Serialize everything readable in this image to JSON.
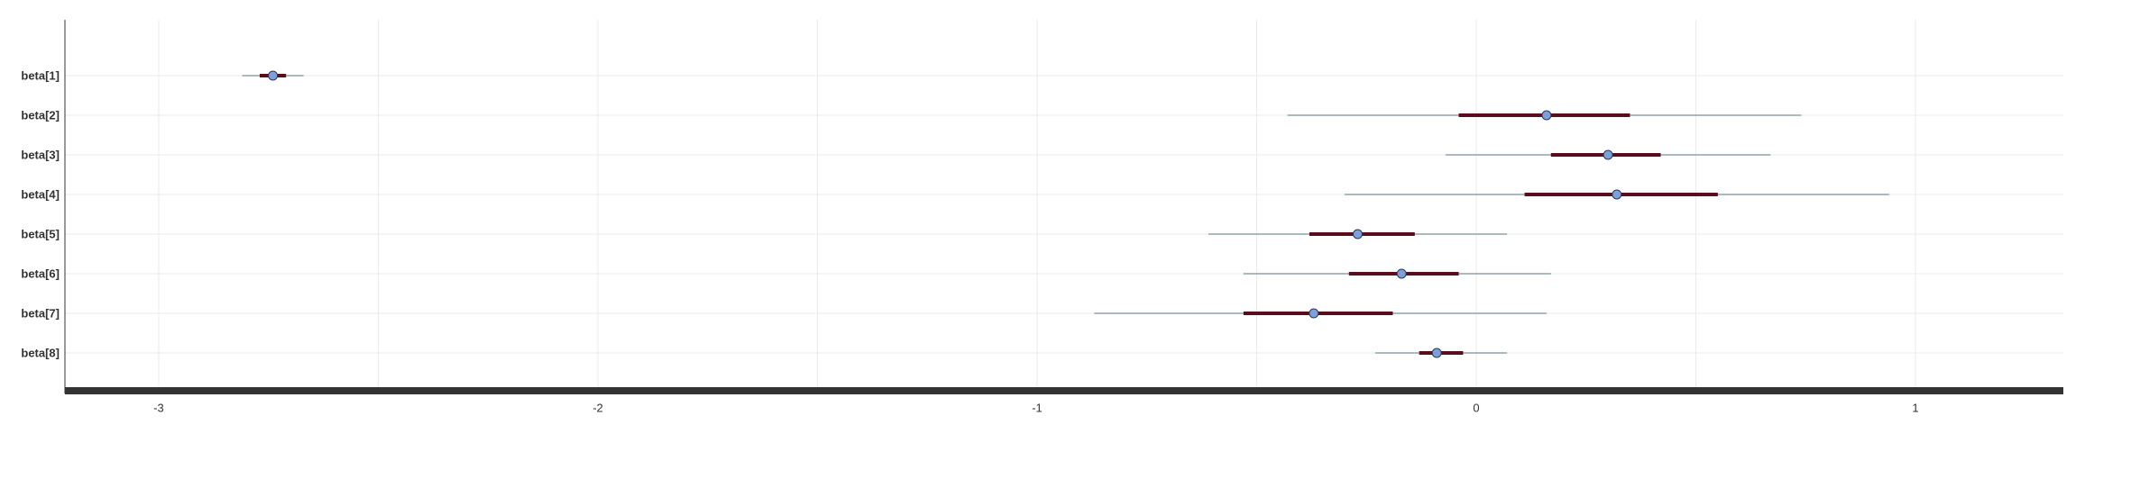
{
  "chart_data": {
    "type": "interval",
    "x_ticks": [
      -3,
      -2,
      -1,
      0,
      1
    ],
    "x_tick_labels": [
      "-3",
      "-2",
      "-1",
      "0",
      "1"
    ],
    "xlim": [
      -3.22,
      1.33
    ],
    "grid": true,
    "series": [
      {
        "label": "beta[1]",
        "outer": [
          -2.81,
          -2.67
        ],
        "inner": [
          -2.77,
          -2.71
        ],
        "point": -2.74
      },
      {
        "label": "beta[2]",
        "outer": [
          -0.43,
          0.74
        ],
        "inner": [
          -0.04,
          0.35
        ],
        "point": 0.16
      },
      {
        "label": "beta[3]",
        "outer": [
          -0.07,
          0.67
        ],
        "inner": [
          0.17,
          0.42
        ],
        "point": 0.3
      },
      {
        "label": "beta[4]",
        "outer": [
          -0.3,
          0.94
        ],
        "inner": [
          0.11,
          0.55
        ],
        "point": 0.32
      },
      {
        "label": "beta[5]",
        "outer": [
          -0.61,
          0.07
        ],
        "inner": [
          -0.38,
          -0.14
        ],
        "point": -0.27
      },
      {
        "label": "beta[6]",
        "outer": [
          -0.53,
          0.17
        ],
        "inner": [
          -0.29,
          -0.04
        ],
        "point": -0.17
      },
      {
        "label": "beta[7]",
        "outer": [
          -0.87,
          0.16
        ],
        "inner": [
          -0.53,
          -0.19
        ],
        "point": -0.37
      },
      {
        "label": "beta[8]",
        "outer": [
          -0.23,
          0.07
        ],
        "inner": [
          -0.13,
          -0.03
        ],
        "point": -0.09
      }
    ],
    "colors": {
      "outer_line": "#8fa3a8",
      "inner_line": "#5a0d1a",
      "point_fill": "#7f9fd9",
      "point_stroke": "#2a3a5a",
      "grid": "#ebebeb",
      "axis": "#333333"
    }
  }
}
